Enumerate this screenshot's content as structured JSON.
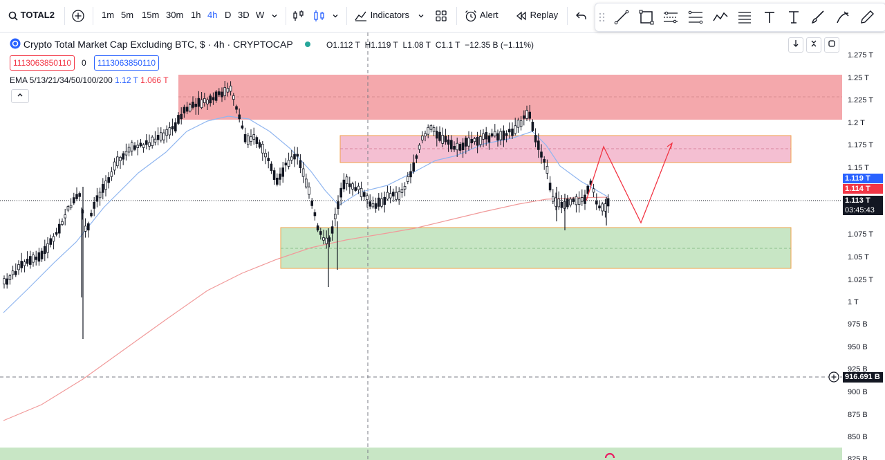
{
  "toolbar": {
    "symbol": "TOTAL2",
    "intervals": [
      "1m",
      "5m",
      "15m",
      "30m",
      "1h",
      "4h",
      "D",
      "3D",
      "W"
    ],
    "active_interval": "4h",
    "indicators_label": "Indicators",
    "alert_label": "Alert",
    "replay_label": "Replay"
  },
  "legend": {
    "title": "Crypto Total Market Cap Excluding BTC, $ · 4h · CRYPTOCAP",
    "o": "O1.112 T",
    "h": "H1.119 T",
    "l": "L1.08 T",
    "c": "C1.1 T",
    "change": "−12.35 B (−1.11%)",
    "box_red": "1113063850110",
    "zero": "0",
    "box_blue": "1113063850110",
    "ema_label": "EMA 5/13/21/34/50/100/200",
    "ema_blue": "1.12 T",
    "ema_red": "1.066 T"
  },
  "axis": {
    "ticks": [
      "1.275 T",
      "1.25 T",
      "1.225 T",
      "1.2 T",
      "1.175 T",
      "1.15 T",
      "1.075 T",
      "1.05 T",
      "1.025 T",
      "1 T",
      "975 B",
      "950 B",
      "925 B",
      "900 B",
      "875 B",
      "850 B",
      "825 B"
    ],
    "tag_blue": "1.119 T",
    "tag_red": "1.114 T",
    "tag_price": "1.113 T",
    "tag_timer": "03:45:43",
    "tag_cursor": "916.691 B"
  },
  "colors": {
    "red_zone": "#f4a8ac",
    "pink_zone": "#f4bfd2",
    "green_zone": "#c8e6c5",
    "candle": "#131722",
    "ema_blue": "#90b6f0",
    "ema_red": "#f19a9a",
    "tag_blue": "#2962ff",
    "tag_red": "#f23645"
  }
}
